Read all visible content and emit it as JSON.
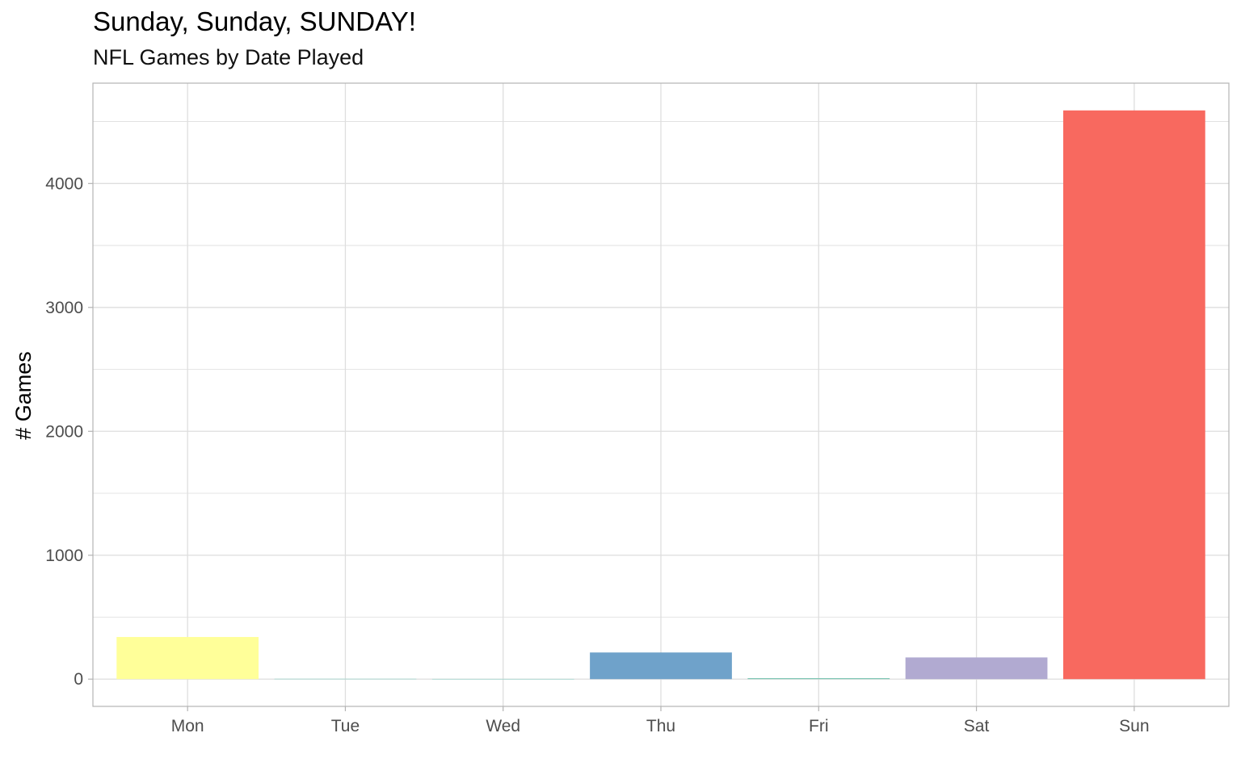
{
  "chart_data": {
    "type": "bar",
    "title": "Sunday, Sunday, SUNDAY!",
    "subtitle": "NFL Games by Date Played",
    "xlabel": "",
    "ylabel": "# Games",
    "categories": [
      "Mon",
      "Tue",
      "Wed",
      "Thu",
      "Fri",
      "Sat",
      "Sun"
    ],
    "values": [
      340,
      3,
      2,
      215,
      8,
      175,
      4590
    ],
    "colors": [
      "#ffff99",
      "#8dd3c7",
      "#8dd3c7",
      "#6fa2ca",
      "#7fc7b5",
      "#b1aad1",
      "#f8695f"
    ],
    "y_ticks": [
      0,
      1000,
      2000,
      3000,
      4000
    ],
    "ylim": [
      -220,
      4810
    ],
    "grid": true,
    "legend": "none",
    "panel_border": "#b3b3b3",
    "grid_color": "#dedede"
  }
}
